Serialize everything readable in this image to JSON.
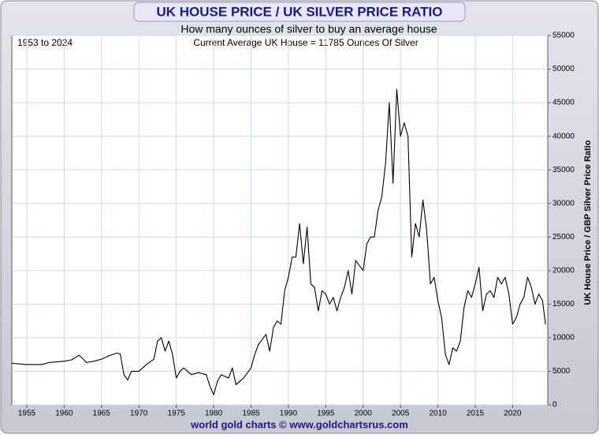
{
  "chart_data": {
    "type": "line",
    "title": "UK HOUSE PRICE / UK SILVER PRICE RATIO",
    "subtitle": "How many ounces of silver to buy an average house",
    "annotations": [
      "1953 to 2024",
      "Current Average UK House = 11785 Ounces Of Silver"
    ],
    "y_label": "UK House Price / GBP Silver Price Ratio",
    "footer": "world gold charts © www.goldchartsrus.com",
    "color": "#000000",
    "grid": true,
    "x": [
      1953,
      1955,
      1957,
      1958,
      1960,
      1961,
      1962,
      1963,
      1964,
      1965,
      1966,
      1967,
      1967.5,
      1968,
      1968.5,
      1969,
      1970,
      1971,
      1972,
      1972.5,
      1973,
      1973.5,
      1974,
      1974.5,
      1975,
      1975.5,
      1976,
      1977,
      1978,
      1979,
      1979.5,
      1980,
      1980.5,
      1981,
      1982,
      1982.5,
      1983,
      1983.5,
      1984,
      1985,
      1985.5,
      1986,
      1987,
      1987.5,
      1988,
      1988.5,
      1989,
      1989.5,
      1990,
      1990.5,
      1991,
      1991.5,
      1992,
      1992.5,
      1993,
      1993.5,
      1994,
      1994.5,
      1995,
      1995.5,
      1996,
      1996.5,
      1997,
      1997.5,
      1998,
      1998.5,
      1999,
      2000,
      2000.5,
      2001,
      2001.5,
      2002,
      2002.5,
      2003,
      2003.5,
      2004,
      2004.5,
      2005,
      2005.5,
      2006,
      2006.5,
      2007,
      2007.5,
      2008,
      2008.5,
      2009,
      2009.5,
      2010,
      2010.5,
      2011,
      2011.5,
      2012,
      2012.5,
      2013,
      2013.5,
      2014,
      2014.5,
      2015,
      2015.5,
      2016,
      2016.5,
      2017,
      2017.5,
      2018,
      2018.5,
      2019,
      2019.5,
      2020,
      2020.5,
      2021,
      2021.5,
      2022,
      2022.5,
      2023,
      2023.5,
      2024,
      2024.4
    ],
    "values": [
      6200,
      6000,
      6000,
      6300,
      6500,
      6700,
      7400,
      6300,
      6500,
      6800,
      7300,
      7700,
      7600,
      4500,
      3700,
      5000,
      5000,
      6000,
      6800,
      9500,
      10000,
      8000,
      9500,
      7500,
      4000,
      5000,
      5500,
      4500,
      4800,
      4500,
      2800,
      1500,
      3500,
      4500,
      4000,
      5500,
      3000,
      3500,
      4000,
      5500,
      7500,
      9000,
      10500,
      8000,
      11500,
      12500,
      12000,
      17000,
      19000,
      22000,
      22000,
      27000,
      21000,
      26500,
      18000,
      17500,
      14000,
      17000,
      16500,
      15000,
      16000,
      14000,
      16000,
      17500,
      20000,
      16500,
      21500,
      20000,
      24000,
      25000,
      25000,
      29000,
      31000,
      36000,
      45000,
      33000,
      47000,
      40000,
      42000,
      40000,
      22000,
      27000,
      25000,
      30500,
      26000,
      18000,
      19000,
      15500,
      13000,
      7500,
      6000,
      8500,
      8000,
      9500,
      14500,
      17000,
      16000,
      18000,
      20500,
      14000,
      16500,
      17000,
      16000,
      19000,
      18000,
      19000,
      16500,
      12000,
      13000,
      15000,
      16000,
      19000,
      17500,
      15000,
      16500,
      15500,
      12000
    ],
    "xlim": [
      1953,
      2024.7
    ],
    "ylim": [
      0,
      55000
    ],
    "xticks": [
      1955,
      1960,
      1965,
      1970,
      1975,
      1980,
      1985,
      1990,
      1995,
      2000,
      2005,
      2010,
      2015,
      2020
    ],
    "yticks": [
      0,
      5000,
      10000,
      15000,
      20000,
      25000,
      30000,
      35000,
      40000,
      45000,
      50000,
      55000
    ]
  }
}
